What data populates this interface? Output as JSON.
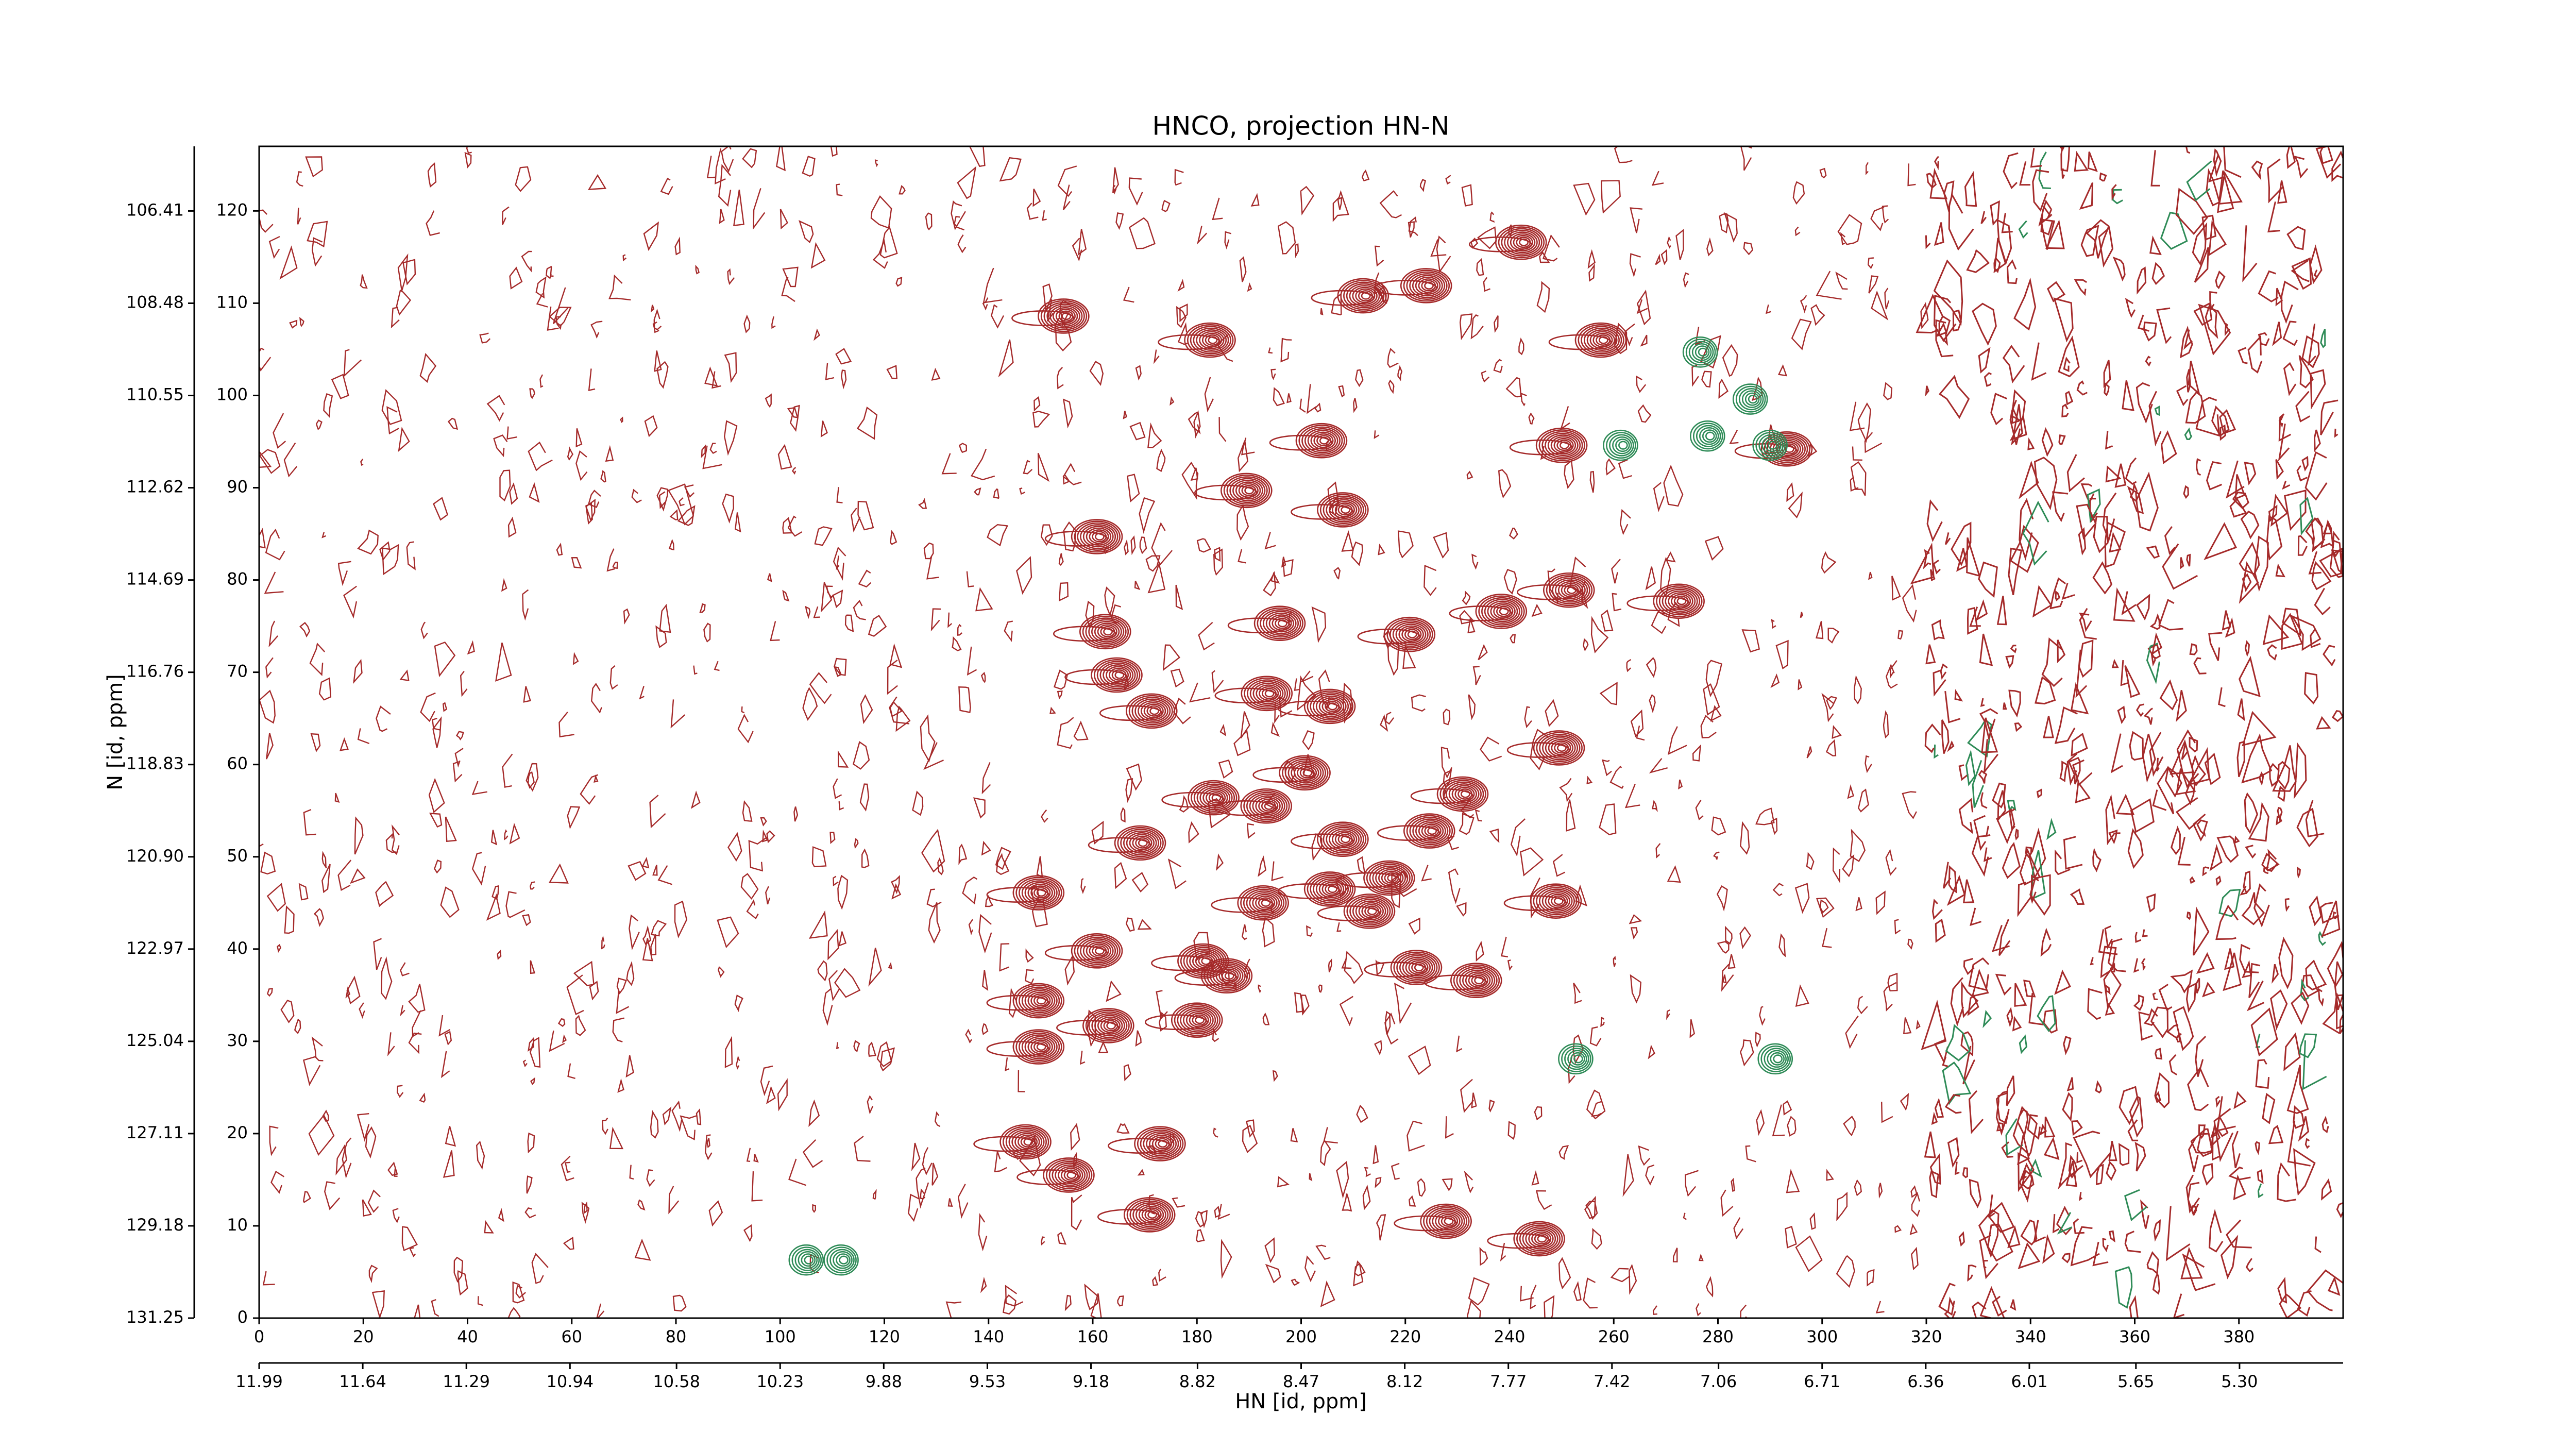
{
  "chart_data": {
    "type": "contour",
    "title": "HNCO, projection HN-N",
    "x_label": "HN [id, ppm]",
    "y_label": "N [id, ppm]",
    "xlim": [
      0,
      400
    ],
    "xticks": [
      0,
      20,
      40,
      60,
      80,
      100,
      120,
      140,
      160,
      180,
      200,
      220,
      240,
      260,
      280,
      300,
      320,
      340,
      360,
      380
    ],
    "ylim": [
      0,
      127
    ],
    "yticks": [
      0,
      10,
      20,
      30,
      40,
      50,
      60,
      70,
      80,
      90,
      100,
      110,
      120
    ],
    "x2lim": [
      11.99,
      4.95
    ],
    "x2ticks": [
      11.99,
      11.64,
      11.29,
      10.94,
      10.58,
      10.23,
      9.88,
      9.53,
      9.18,
      8.82,
      8.47,
      8.12,
      7.77,
      7.42,
      7.06,
      6.71,
      6.36,
      6.01,
      5.65,
      {
        "value": 5.3,
        "label": "5.30"
      }
    ],
    "y2lim": [
      131.25,
      104.96
    ],
    "y2ticks": [
      131.25,
      129.18,
      127.11,
      125.04,
      122.97,
      {
        "value": 120.9,
        "label": "120.90"
      },
      118.83,
      116.76,
      114.69,
      112.62,
      110.55,
      108.48,
      106.41
    ],
    "peaks": [
      {
        "color": "#a52a2a",
        "x": [
          154.4,
          182.5,
          211.9,
          224,
          242.2,
          257.5,
          203.9,
          189.5,
          208,
          160.8,
          251.4,
          272.5,
          238.4,
          220.8,
          195.9,
          162.4,
          164.6,
          171.3,
          193.4,
          205.5,
          249.5,
          200.7,
          183.2,
          193.3,
          169.1,
          231,
          224.6,
          208,
          216.9,
          192.7,
          205.5,
          213.1,
          248.9,
          149.6,
          160.8,
          181.2,
          185.7,
          222.1,
          233.6,
          149.6,
          163,
          180,
          149.6,
          172.9,
          155.4,
          170.9,
          227.8,
          245.7,
          147.1,
          250,
          293.2
        ],
        "y": [
          108.6,
          106,
          110.8,
          111.9,
          116.6,
          106,
          95.1,
          89.7,
          87.6,
          84.7,
          78.9,
          77.7,
          76.6,
          74.1,
          75.3,
          74.4,
          69.7,
          65.8,
          67.7,
          66.3,
          61.8,
          59.1,
          56.4,
          55.5,
          51.5,
          56.8,
          52.8,
          51.9,
          47.7,
          45,
          46.5,
          44.1,
          45.2,
          46.1,
          39.8,
          38.7,
          37.1,
          38,
          36.6,
          34.4,
          31.7,
          32.3,
          29.4,
          18.9,
          15.5,
          11.2,
          10.5,
          8.6,
          19.1,
          94.6,
          94.2
        ]
      },
      {
        "color": "#2e8b57",
        "x": [
          276.6,
          286.2,
          261.3,
          290,
          278,
          105,
          111.7,
          291,
          252.7
        ],
        "y": [
          104.7,
          99.6,
          94.6,
          94.6,
          95.6,
          6.3,
          6.3,
          28.1,
          28.1
        ]
      }
    ]
  }
}
